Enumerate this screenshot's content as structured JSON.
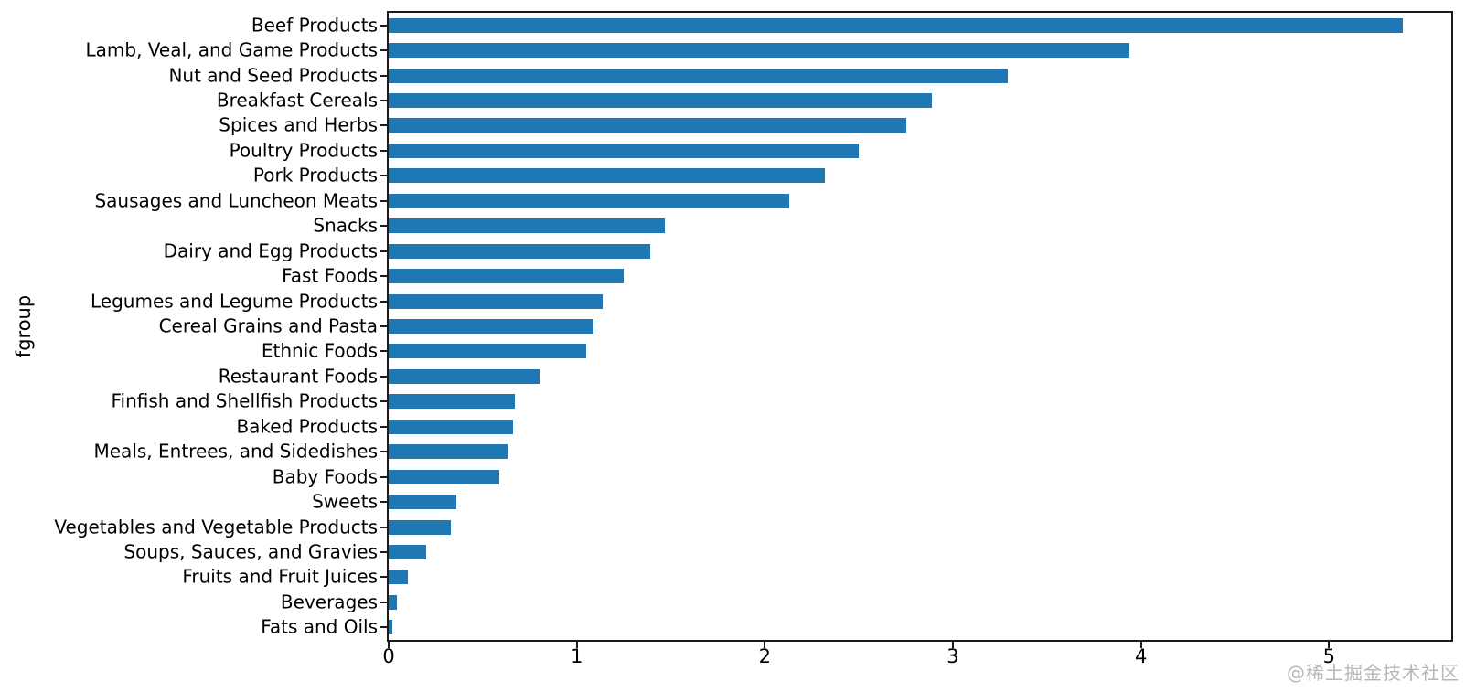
{
  "chart_data": {
    "type": "bar",
    "orientation": "horizontal",
    "title": "",
    "xlabel": "",
    "ylabel": "fgroup",
    "categories": [
      "Beef Products",
      "Lamb, Veal, and Game Products",
      "Nut and Seed Products",
      "Breakfast Cereals",
      "Spices and Herbs",
      "Poultry Products",
      "Pork Products",
      "Sausages and Luncheon Meats",
      "Snacks",
      "Dairy and Egg Products",
      "Fast Foods",
      "Legumes and Legume Products",
      "Cereal Grains and Pasta",
      "Ethnic Foods",
      "Restaurant Foods",
      "Finfish and Shellfish Products",
      "Baked Products",
      "Meals, Entrees, and Sidedishes",
      "Baby Foods",
      "Sweets",
      "Vegetables and Vegetable Products",
      "Soups, Sauces, and Gravies",
      "Fruits and Fruit Juices",
      "Beverages",
      "Fats and Oils"
    ],
    "values": [
      5.39,
      3.94,
      3.29,
      2.89,
      2.75,
      2.5,
      2.32,
      2.13,
      1.47,
      1.39,
      1.25,
      1.14,
      1.09,
      1.05,
      0.8,
      0.67,
      0.66,
      0.63,
      0.59,
      0.36,
      0.33,
      0.2,
      0.1,
      0.045,
      0.02
    ],
    "xticks": [
      0,
      1,
      2,
      3,
      4,
      5
    ],
    "xtick_labels": [
      "0",
      "1",
      "2",
      "3",
      "4",
      "5"
    ],
    "xlim": [
      0,
      5.65
    ],
    "bar_color": "#1f77b4",
    "axis_color": "#1a1a1a",
    "grid": false,
    "legend": "none"
  },
  "watermark": {
    "text": "@稀土掘金技术社区"
  }
}
